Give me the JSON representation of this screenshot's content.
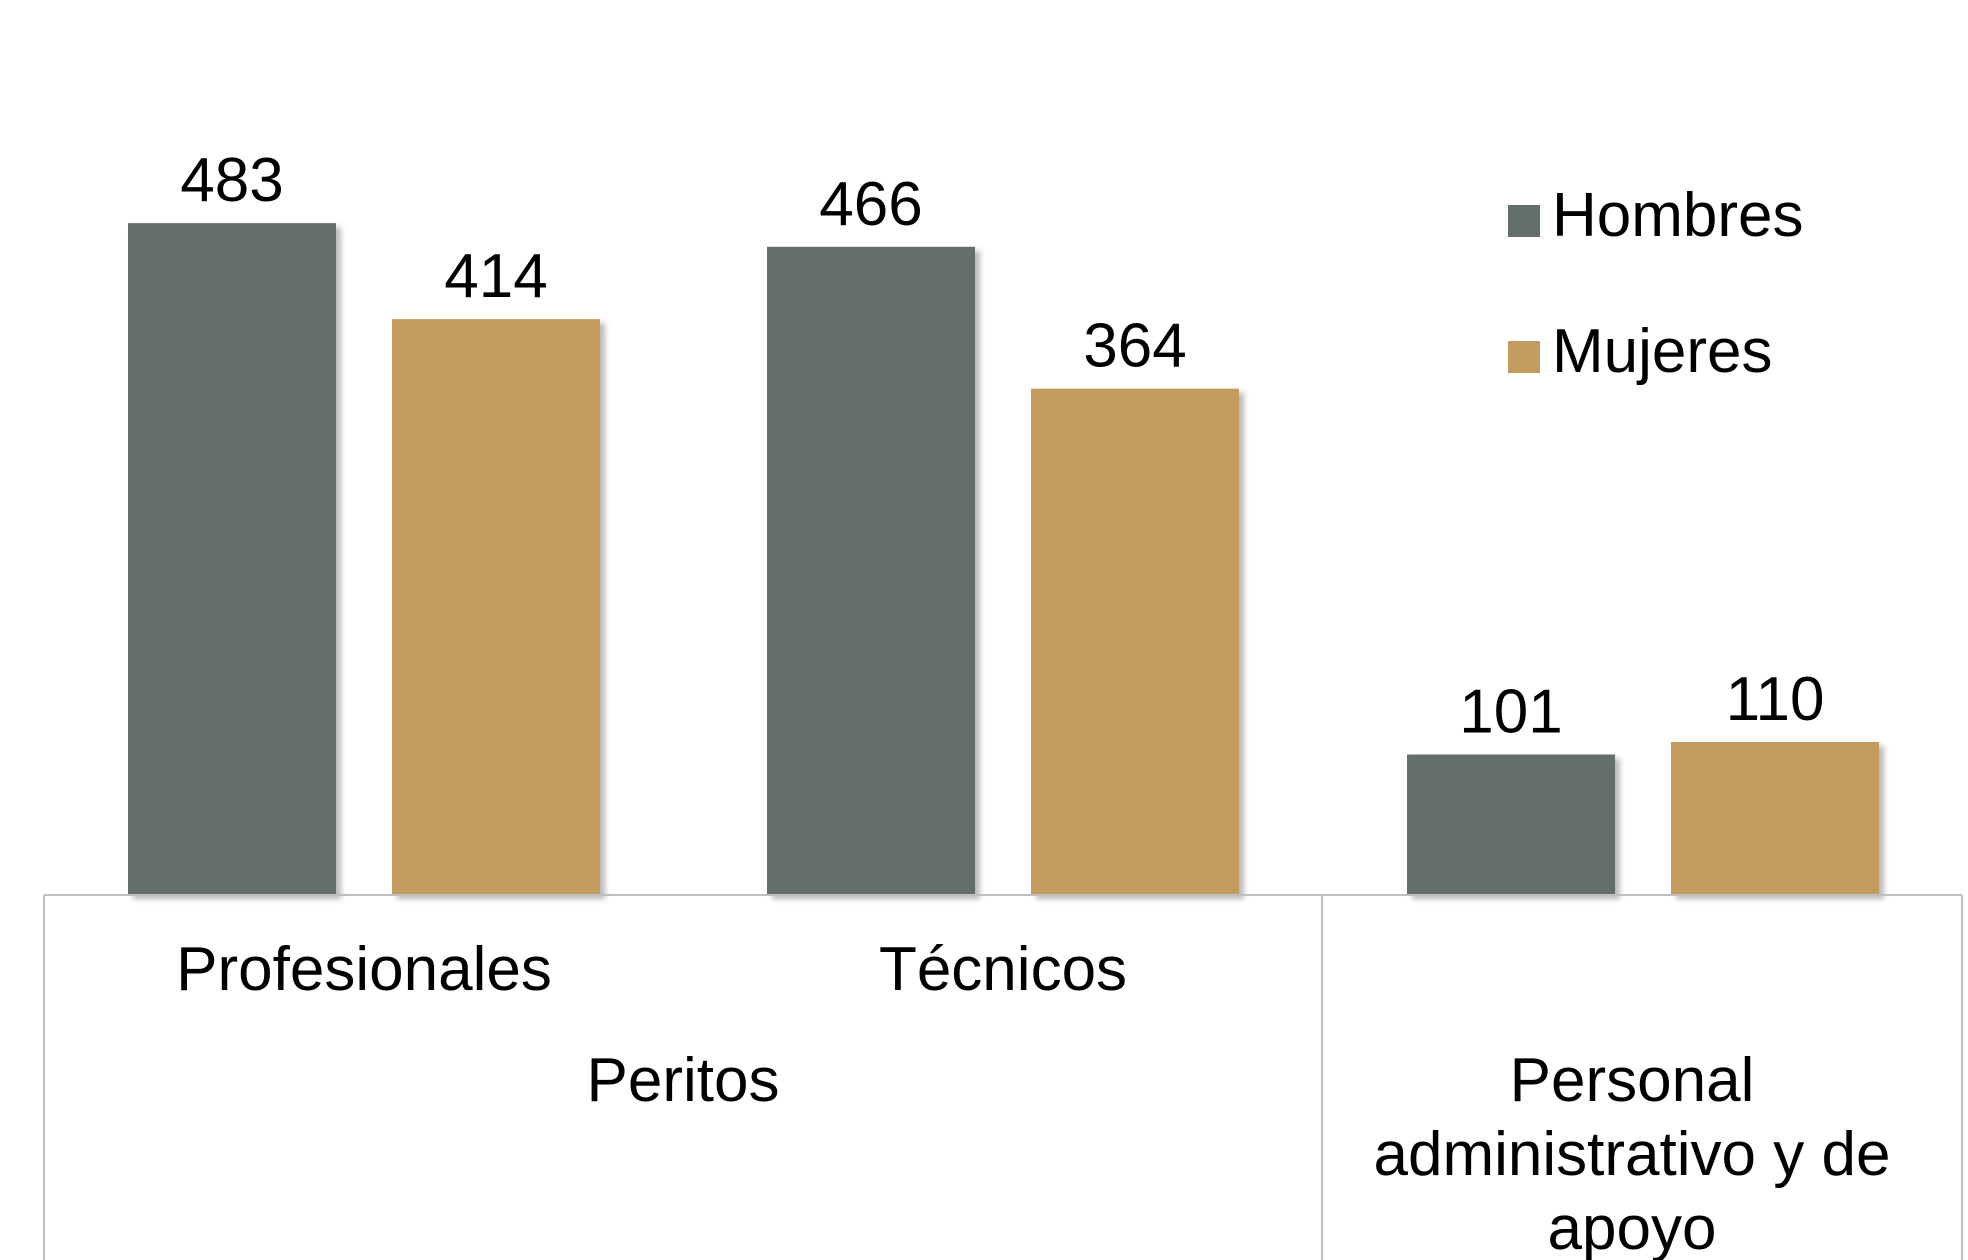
{
  "chart_data": {
    "type": "bar",
    "categories": [
      "Profesionales",
      "Técnicos",
      "Personal administrativo y de apoyo"
    ],
    "groups": [
      {
        "label": "Peritos",
        "categories": [
          "Profesionales",
          "Técnicos"
        ]
      },
      {
        "label": "Personal administrativo y de apoyo",
        "categories": [
          "Personal administrativo y de apoyo"
        ]
      }
    ],
    "group_label_lines": {
      "Peritos": [
        "Peritos"
      ],
      "Personal administrativo y de apoyo": [
        "Personal",
        "administrativo y de",
        "apoyo"
      ]
    },
    "series": [
      {
        "name": "Hombres",
        "values": [
          483,
          466,
          101
        ],
        "color": "#637069"
      },
      {
        "name": "Mujeres",
        "values": [
          414,
          364,
          110
        ],
        "color": "#c29b5f"
      }
    ],
    "ylim": [
      0,
      500
    ],
    "grid": false,
    "legend_position": "top-right",
    "title": "",
    "xlabel": "",
    "ylabel": ""
  }
}
